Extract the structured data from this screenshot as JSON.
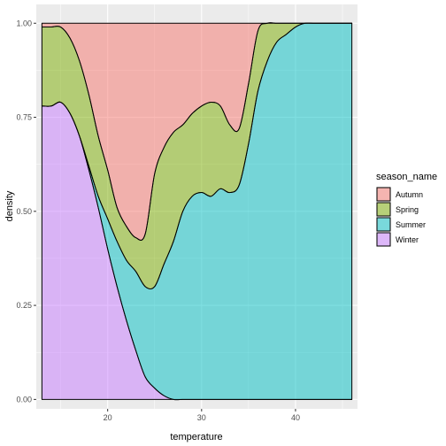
{
  "chart_data": {
    "type": "area",
    "subtype": "stacked conditional density (fill = 1)",
    "xlabel": "temperature",
    "ylabel": "density",
    "xlim": [
      12.4,
      46.6
    ],
    "ylim": [
      -0.025,
      1.05
    ],
    "xticks": [
      20,
      30,
      40
    ],
    "yticks": [
      0.0,
      0.25,
      0.5,
      0.75,
      1.0
    ],
    "ytick_labels": [
      "0.00",
      "0.25",
      "0.50",
      "0.75",
      "1.00"
    ],
    "background": "#ebebeb",
    "grid": true,
    "legend": {
      "title": "season_name",
      "position": "right"
    },
    "x": [
      13.0,
      14.0,
      15.0,
      16.0,
      17.0,
      18.0,
      19.0,
      20.0,
      21.0,
      22.0,
      23.0,
      24.0,
      25.0,
      26.0,
      27.0,
      28.0,
      29.0,
      30.0,
      31.0,
      32.0,
      33.0,
      34.0,
      35.0,
      36.0,
      37.0,
      38.0,
      39.0,
      40.0,
      41.0,
      42.0,
      43.0,
      44.0,
      45.0,
      46.0
    ],
    "series": [
      {
        "name": "Winter",
        "color": "#C77CFF",
        "values": [
          0.78,
          0.78,
          0.79,
          0.76,
          0.7,
          0.61,
          0.51,
          0.4,
          0.3,
          0.21,
          0.13,
          0.06,
          0.03,
          0.01,
          0.0,
          0.0,
          0.0,
          0.0,
          0.0,
          0.0,
          0.0,
          0.0,
          0.0,
          0.0,
          0.0,
          0.0,
          0.0,
          0.0,
          0.0,
          0.0,
          0.0,
          0.0,
          0.0,
          0.0
        ]
      },
      {
        "name": "Summer",
        "color": "#00BFC4",
        "values": [
          0.0,
          0.0,
          0.0,
          0.0,
          0.0,
          0.01,
          0.03,
          0.08,
          0.12,
          0.16,
          0.21,
          0.24,
          0.27,
          0.35,
          0.42,
          0.5,
          0.54,
          0.55,
          0.54,
          0.56,
          0.55,
          0.57,
          0.68,
          0.82,
          0.9,
          0.95,
          0.97,
          0.99,
          1.0,
          1.0,
          1.0,
          1.0,
          1.0,
          1.0
        ]
      },
      {
        "name": "Spring",
        "color": "#7CAE00",
        "values": [
          0.21,
          0.21,
          0.2,
          0.2,
          0.2,
          0.19,
          0.16,
          0.13,
          0.09,
          0.09,
          0.09,
          0.14,
          0.3,
          0.31,
          0.29,
          0.23,
          0.22,
          0.23,
          0.25,
          0.22,
          0.18,
          0.15,
          0.16,
          0.16,
          0.1,
          0.05,
          0.03,
          0.01,
          0.0,
          0.0,
          0.0,
          0.0,
          0.0,
          0.0
        ]
      },
      {
        "name": "Autumn",
        "color": "#F8766D",
        "values": [
          0.01,
          0.01,
          0.01,
          0.04,
          0.1,
          0.19,
          0.3,
          0.39,
          0.49,
          0.54,
          0.57,
          0.56,
          0.4,
          0.33,
          0.29,
          0.27,
          0.24,
          0.22,
          0.21,
          0.22,
          0.27,
          0.28,
          0.16,
          0.02,
          0.0,
          0.0,
          0.0,
          0.0,
          0.0,
          0.0,
          0.0,
          0.0,
          0.0,
          0.0
        ]
      }
    ]
  }
}
